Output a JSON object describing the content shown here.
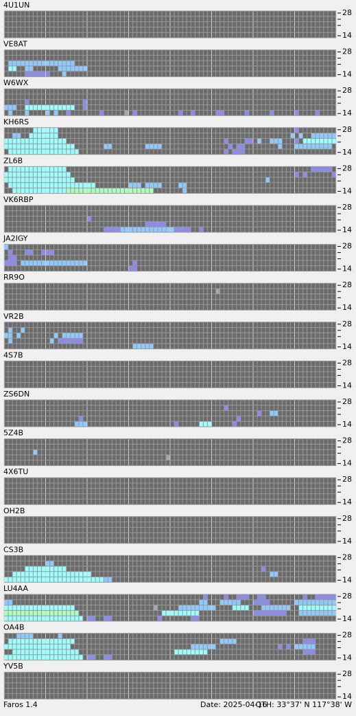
{
  "band_labels": {
    "top": "28",
    "bottom": "14"
  },
  "stations": [
    {
      "name": "4U1UN",
      "cells": []
    },
    {
      "name": "VE8AT",
      "cells": [
        [
          2,
          1,
          16,
          2
        ],
        [
          3,
          1,
          2,
          3
        ],
        [
          3,
          5,
          6,
          2
        ],
        [
          3,
          13,
          19,
          2
        ],
        [
          4,
          5,
          10,
          1
        ],
        [
          4,
          14,
          14,
          2
        ]
      ]
    },
    {
      "name": "W6WX",
      "cells": [
        [
          2,
          5,
          5,
          1
        ],
        [
          2,
          19,
          19,
          1
        ],
        [
          3,
          0,
          2,
          2
        ],
        [
          3,
          5,
          16,
          3
        ],
        [
          3,
          19,
          19,
          1
        ],
        [
          4,
          1,
          1,
          2
        ],
        [
          4,
          5,
          5,
          2
        ],
        [
          4,
          10,
          10,
          2
        ],
        [
          4,
          12,
          12,
          2
        ],
        [
          4,
          15,
          15,
          1
        ],
        [
          4,
          23,
          23,
          1
        ],
        [
          4,
          29,
          29,
          0
        ],
        [
          4,
          31,
          31,
          1
        ],
        [
          4,
          42,
          42,
          1
        ],
        [
          4,
          45,
          45,
          1
        ],
        [
          4,
          51,
          52,
          1
        ],
        [
          4,
          58,
          58,
          1
        ],
        [
          4,
          64,
          64,
          1
        ],
        [
          4,
          70,
          70,
          1
        ],
        [
          4,
          75,
          75,
          1
        ]
      ]
    },
    {
      "name": "KH6RS",
      "cells": [
        [
          0,
          7,
          12,
          3
        ],
        [
          0,
          70,
          70,
          1
        ],
        [
          1,
          2,
          3,
          2
        ],
        [
          1,
          6,
          12,
          3
        ],
        [
          1,
          69,
          69,
          2
        ],
        [
          1,
          71,
          71,
          2
        ],
        [
          1,
          74,
          79,
          2
        ],
        [
          2,
          0,
          14,
          3
        ],
        [
          2,
          53,
          53,
          1
        ],
        [
          2,
          58,
          59,
          1
        ],
        [
          2,
          61,
          61,
          2
        ],
        [
          2,
          64,
          66,
          2
        ],
        [
          2,
          70,
          70,
          1
        ],
        [
          2,
          72,
          79,
          3
        ],
        [
          3,
          0,
          16,
          3
        ],
        [
          3,
          24,
          25,
          2
        ],
        [
          3,
          34,
          37,
          2
        ],
        [
          3,
          54,
          54,
          1
        ],
        [
          3,
          56,
          57,
          1
        ],
        [
          3,
          66,
          66,
          2
        ],
        [
          3,
          70,
          78,
          2
        ],
        [
          4,
          1,
          17,
          3
        ],
        [
          4,
          53,
          53,
          1
        ],
        [
          4,
          55,
          57,
          1
        ]
      ]
    },
    {
      "name": "ZL6B",
      "cells": [
        [
          0,
          1,
          14,
          3
        ],
        [
          0,
          74,
          78,
          1
        ],
        [
          1,
          0,
          15,
          3
        ],
        [
          1,
          70,
          70,
          1
        ],
        [
          1,
          72,
          72,
          1
        ],
        [
          1,
          79,
          79,
          1
        ],
        [
          2,
          0,
          16,
          3
        ],
        [
          2,
          63,
          63,
          2
        ],
        [
          3,
          1,
          21,
          3
        ],
        [
          3,
          30,
          32,
          2
        ],
        [
          3,
          34,
          37,
          2
        ],
        [
          3,
          42,
          43,
          2
        ],
        [
          4,
          2,
          14,
          3
        ],
        [
          4,
          15,
          35,
          4
        ],
        [
          4,
          43,
          43,
          2
        ]
      ]
    },
    {
      "name": "VK6RBP",
      "cells": [
        [
          2,
          20,
          20,
          1
        ],
        [
          3,
          34,
          38,
          1
        ],
        [
          4,
          24,
          44,
          1
        ],
        [
          4,
          28,
          40,
          2
        ],
        [
          4,
          47,
          47,
          1
        ]
      ]
    },
    {
      "name": "JA2IGY",
      "cells": [
        [
          0,
          0,
          0,
          2
        ],
        [
          1,
          1,
          1,
          1
        ],
        [
          1,
          5,
          6,
          1
        ],
        [
          1,
          9,
          11,
          1
        ],
        [
          2,
          1,
          2,
          1
        ],
        [
          3,
          0,
          2,
          1
        ],
        [
          3,
          4,
          5,
          2
        ],
        [
          3,
          6,
          19,
          2
        ],
        [
          3,
          31,
          31,
          1
        ],
        [
          4,
          30,
          31,
          1
        ]
      ]
    },
    {
      "name": "RR9O",
      "cells": [
        [
          1,
          51,
          51,
          0
        ]
      ]
    },
    {
      "name": "VR2B",
      "cells": [
        [
          1,
          1,
          1,
          2
        ],
        [
          1,
          4,
          4,
          2
        ],
        [
          2,
          0,
          1,
          2
        ],
        [
          2,
          3,
          3,
          2
        ],
        [
          2,
          12,
          12,
          2
        ],
        [
          2,
          14,
          18,
          2
        ],
        [
          3,
          1,
          1,
          2
        ],
        [
          3,
          11,
          11,
          2
        ],
        [
          3,
          13,
          18,
          1
        ],
        [
          4,
          31,
          35,
          2
        ]
      ]
    },
    {
      "name": "4S7B",
      "cells": []
    },
    {
      "name": "ZS6DN",
      "cells": [
        [
          1,
          53,
          53,
          1
        ],
        [
          2,
          61,
          61,
          1
        ],
        [
          2,
          64,
          65,
          2
        ],
        [
          3,
          18,
          18,
          1
        ],
        [
          3,
          56,
          56,
          1
        ],
        [
          4,
          17,
          19,
          2
        ],
        [
          4,
          41,
          41,
          1
        ],
        [
          4,
          47,
          49,
          3
        ],
        [
          4,
          55,
          55,
          1
        ]
      ]
    },
    {
      "name": "5Z4B",
      "cells": [
        [
          2,
          7,
          7,
          2
        ],
        [
          3,
          39,
          39,
          0
        ]
      ]
    },
    {
      "name": "4X6TU",
      "cells": []
    },
    {
      "name": "OH2B",
      "cells": []
    },
    {
      "name": "CS3B",
      "cells": [
        [
          1,
          10,
          11,
          2
        ],
        [
          2,
          5,
          14,
          3
        ],
        [
          2,
          62,
          62,
          1
        ],
        [
          3,
          2,
          20,
          3
        ],
        [
          3,
          64,
          65,
          2
        ],
        [
          4,
          0,
          23,
          3
        ],
        [
          4,
          24,
          25,
          2
        ]
      ]
    },
    {
      "name": "LU4AA",
      "cells": [
        [
          0,
          48,
          48,
          1
        ],
        [
          0,
          53,
          53,
          1
        ],
        [
          0,
          56,
          58,
          1
        ],
        [
          0,
          61,
          62,
          1
        ],
        [
          0,
          72,
          72,
          1
        ],
        [
          0,
          75,
          79,
          1
        ],
        [
          1,
          0,
          1,
          2
        ],
        [
          1,
          47,
          48,
          2
        ],
        [
          1,
          52,
          56,
          2
        ],
        [
          1,
          60,
          63,
          1
        ],
        [
          1,
          70,
          79,
          2
        ],
        [
          2,
          0,
          16,
          3
        ],
        [
          2,
          36,
          36,
          0
        ],
        [
          2,
          42,
          50,
          2
        ],
        [
          2,
          55,
          58,
          3
        ],
        [
          2,
          62,
          68,
          2
        ],
        [
          2,
          71,
          79,
          3
        ],
        [
          3,
          0,
          17,
          4
        ],
        [
          3,
          38,
          46,
          3
        ],
        [
          3,
          60,
          67,
          1
        ],
        [
          3,
          71,
          79,
          2
        ],
        [
          4,
          0,
          18,
          3
        ],
        [
          4,
          20,
          21,
          1
        ],
        [
          4,
          24,
          25,
          1
        ],
        [
          4,
          37,
          37,
          1
        ],
        [
          4,
          45,
          46,
          1
        ]
      ]
    },
    {
      "name": "OA4B",
      "cells": [
        [
          0,
          3,
          6,
          2
        ],
        [
          0,
          13,
          13,
          2
        ],
        [
          1,
          1,
          16,
          3
        ],
        [
          1,
          52,
          55,
          2
        ],
        [
          1,
          72,
          74,
          1
        ],
        [
          2,
          0,
          15,
          3
        ],
        [
          2,
          45,
          50,
          2
        ],
        [
          2,
          66,
          66,
          1
        ],
        [
          2,
          68,
          68,
          1
        ],
        [
          2,
          70,
          74,
          2
        ],
        [
          3,
          2,
          17,
          3
        ],
        [
          3,
          41,
          48,
          3
        ],
        [
          3,
          72,
          74,
          1
        ],
        [
          4,
          0,
          18,
          3
        ],
        [
          4,
          20,
          21,
          1
        ],
        [
          4,
          24,
          25,
          1
        ]
      ]
    },
    {
      "name": "YV5B",
      "cells": []
    }
  ],
  "footer": {
    "app": "Faros 1.4",
    "date": "Date: 2025-04-16",
    "qth": "QTH: 33°37' N  117°38' W"
  }
}
